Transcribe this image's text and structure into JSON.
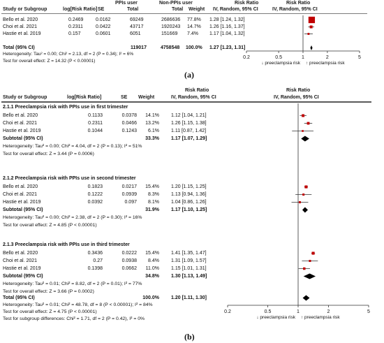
{
  "chart_data": [
    {
      "type": "forest",
      "panel_label": "(a)",
      "header": {
        "study": "Study or Subgroup",
        "logrr": "log[Risk Ratio]",
        "se": "SE",
        "ppi_group": "PPIs user",
        "nonppi_group": "Non-PPIs user",
        "total1": "Total",
        "total2": "Total",
        "weight": "Weight",
        "rr1": "Risk Ratio",
        "rr1b": "IV, Random, 95% CI",
        "rr2": "Risk Ratio",
        "rr2b": "IV, Random, 95% CI"
      },
      "studies": [
        {
          "name": "Bello et al. 2020",
          "logrr": "0.2469",
          "se": "0.0162",
          "ppi_total": "69249",
          "nonppi_total": "2686636",
          "weight": "77.8%",
          "ci_text": "1.28 [1.24, 1.32]",
          "rr": 1.28,
          "lo": 1.24,
          "hi": 1.32,
          "w": 77.8
        },
        {
          "name": "Choi et al. 2021",
          "logrr": "0.2311",
          "se": "0.0422",
          "ppi_total": "43717",
          "nonppi_total": "1920243",
          "weight": "14.7%",
          "ci_text": "1.26 [1.16, 1.37]",
          "rr": 1.26,
          "lo": 1.16,
          "hi": 1.37,
          "w": 14.7
        },
        {
          "name": "Hastie et al. 2019",
          "logrr": "0.157",
          "se": "0.0601",
          "ppi_total": "6051",
          "nonppi_total": "151669",
          "weight": "7.4%",
          "ci_text": "1.17 [1.04, 1.32]",
          "rr": 1.17,
          "lo": 1.04,
          "hi": 1.32,
          "w": 7.4
        }
      ],
      "total": {
        "name": "Total (95% CI)",
        "ppi_total": "119017",
        "nonppi_total": "4758548",
        "weight": "100.0%",
        "ci_text": "1.27 [1.23, 1.31]",
        "rr": 1.27,
        "lo": 1.23,
        "hi": 1.31
      },
      "heterogeneity": "Heterogeneity: Tau² = 0.00; Chi² = 2.13, df = 2 (P = 0.34); I² = 6%",
      "overall_effect": "Test for overall effect: Z = 14.32 (P < 0.00001)",
      "x_scale": "log",
      "xlim": [
        0.2,
        5
      ],
      "ticks": [
        {
          "v": 0.2,
          "label": "0.2"
        },
        {
          "v": 0.5,
          "label": "0.5"
        },
        {
          "v": 1,
          "label": "1"
        },
        {
          "v": 2,
          "label": "2"
        },
        {
          "v": 5,
          "label": "5"
        }
      ],
      "favours_left": "↓ preeclampsia risk",
      "favours_right": "↑ preeclampsia risk",
      "marker_color": "#c00000"
    },
    {
      "type": "forest",
      "panel_label": "(b)",
      "header": {
        "study": "Study or Subgroup",
        "logrr": "log[Risk Ratio]",
        "se": "SE",
        "weight": "Weight",
        "rr1": "Risk Ratio",
        "rr1b": "IV, Random, 95% CI",
        "rr2": "Risk Ratio",
        "rr2b": "IV, Random, 95% CI"
      },
      "subgroups": [
        {
          "title": "2.1.1 Preeclampsia risk with PPIs use in first trimester",
          "studies": [
            {
              "name": "Bello et al. 2020",
              "logrr": "0.1133",
              "se": "0.0378",
              "weight": "14.1%",
              "ci_text": "1.12 [1.04, 1.21]",
              "rr": 1.12,
              "lo": 1.04,
              "hi": 1.21,
              "w": 14.1
            },
            {
              "name": "Choi et al. 2021",
              "logrr": "0.2311",
              "se": "0.0466",
              "weight": "13.2%",
              "ci_text": "1.26 [1.15, 1.38]",
              "rr": 1.26,
              "lo": 1.15,
              "hi": 1.38,
              "w": 13.2
            },
            {
              "name": "Hastie et al. 2019",
              "logrr": "0.1044",
              "se": "0.1243",
              "weight": "6.1%",
              "ci_text": "1.11 [0.87, 1.42]",
              "rr": 1.11,
              "lo": 0.87,
              "hi": 1.42,
              "w": 6.1
            }
          ],
          "subtotal": {
            "name": "Subtotal (95% CI)",
            "weight": "33.3%",
            "ci_text": "1.17 [1.07, 1.29]",
            "rr": 1.17,
            "lo": 1.07,
            "hi": 1.29
          },
          "heterogeneity": "Heterogeneity: Tau² = 0.00; Chi² = 4.04, df = 2 (P = 0.13); I² = 51%",
          "overall_effect": "Test for overall effect: Z = 3.44 (P = 0.0006)"
        },
        {
          "title": "2.1.2 Preeclampsia risk with PPIs use in second trimester",
          "studies": [
            {
              "name": "Bello et al. 2020",
              "logrr": "0.1823",
              "se": "0.0217",
              "weight": "15.4%",
              "ci_text": "1.20 [1.15, 1.25]",
              "rr": 1.2,
              "lo": 1.15,
              "hi": 1.25,
              "w": 15.4
            },
            {
              "name": "Choi et al. 2021",
              "logrr": "0.1222",
              "se": "0.0939",
              "weight": "8.3%",
              "ci_text": "1.13 [0.94, 1.36]",
              "rr": 1.13,
              "lo": 0.94,
              "hi": 1.36,
              "w": 8.3
            },
            {
              "name": "Hastie et al. 2019",
              "logrr": "0.0392",
              "se": "0.097",
              "weight": "8.1%",
              "ci_text": "1.04 [0.86, 1.26]",
              "rr": 1.04,
              "lo": 0.86,
              "hi": 1.26,
              "w": 8.1
            }
          ],
          "subtotal": {
            "name": "Subtotal (95% CI)",
            "weight": "31.9%",
            "ci_text": "1.17 [1.10, 1.25]",
            "rr": 1.17,
            "lo": 1.1,
            "hi": 1.25
          },
          "heterogeneity": "Heterogeneity: Tau² = 0.00; Chi² = 2.38, df = 2 (P = 0.30); I² = 16%",
          "overall_effect": "Test for overall effect: Z = 4.85 (P < 0.00001)"
        },
        {
          "title": "2.1.3 Preeclampsia risk with PPIs use in third trimester",
          "studies": [
            {
              "name": "Bello et al. 2020",
              "logrr": "0.3436",
              "se": "0.0222",
              "weight": "15.4%",
              "ci_text": "1.41 [1.35, 1.47]",
              "rr": 1.41,
              "lo": 1.35,
              "hi": 1.47,
              "w": 15.4
            },
            {
              "name": "Choi et al. 2021",
              "logrr": "0.27",
              "se": "0.0938",
              "weight": "8.4%",
              "ci_text": "1.31 [1.09, 1.57]",
              "rr": 1.31,
              "lo": 1.09,
              "hi": 1.57,
              "w": 8.4
            },
            {
              "name": "Hastie et al. 2019",
              "logrr": "0.1398",
              "se": "0.0662",
              "weight": "11.0%",
              "ci_text": "1.15 [1.01, 1.31]",
              "rr": 1.15,
              "lo": 1.01,
              "hi": 1.31,
              "w": 11.0
            }
          ],
          "subtotal": {
            "name": "Subtotal (95% CI)",
            "weight": "34.8%",
            "ci_text": "1.30 [1.13, 1.49]",
            "rr": 1.3,
            "lo": 1.13,
            "hi": 1.49
          },
          "heterogeneity": "Heterogeneity: Tau² = 0.01; Chi² = 8.82, df = 2 (P = 0.01); I² = 77%",
          "overall_effect": "Test for overall effect: Z = 3.66 (P = 0.0002)"
        }
      ],
      "total": {
        "name": "Total (95% CI)",
        "weight": "100.0%",
        "ci_text": "1.20 [1.11, 1.30]",
        "rr": 1.2,
        "lo": 1.11,
        "hi": 1.3
      },
      "heterogeneity": "Heterogeneity: Tau² = 0.01; Chi² = 48.78, df = 8 (P < 0.00001); I² = 84%",
      "overall_effect": "Test for overall effect: Z = 4.75 (P < 0.00001)",
      "subgroup_differences": "Test for subgroup differences: Chi² = 1.71, df = 2 (P = 0.42), I² = 0%",
      "x_scale": "log",
      "xlim": [
        0.2,
        5
      ],
      "ticks": [
        {
          "v": 0.2,
          "label": "0.2"
        },
        {
          "v": 0.5,
          "label": "0.5"
        },
        {
          "v": 1,
          "label": "1"
        },
        {
          "v": 2,
          "label": "2"
        },
        {
          "v": 5,
          "label": "5"
        }
      ],
      "favours_left": "↓ preeclampsia risk",
      "favours_right": "↑ preeclampsia risk",
      "marker_color": "#c00000"
    }
  ]
}
